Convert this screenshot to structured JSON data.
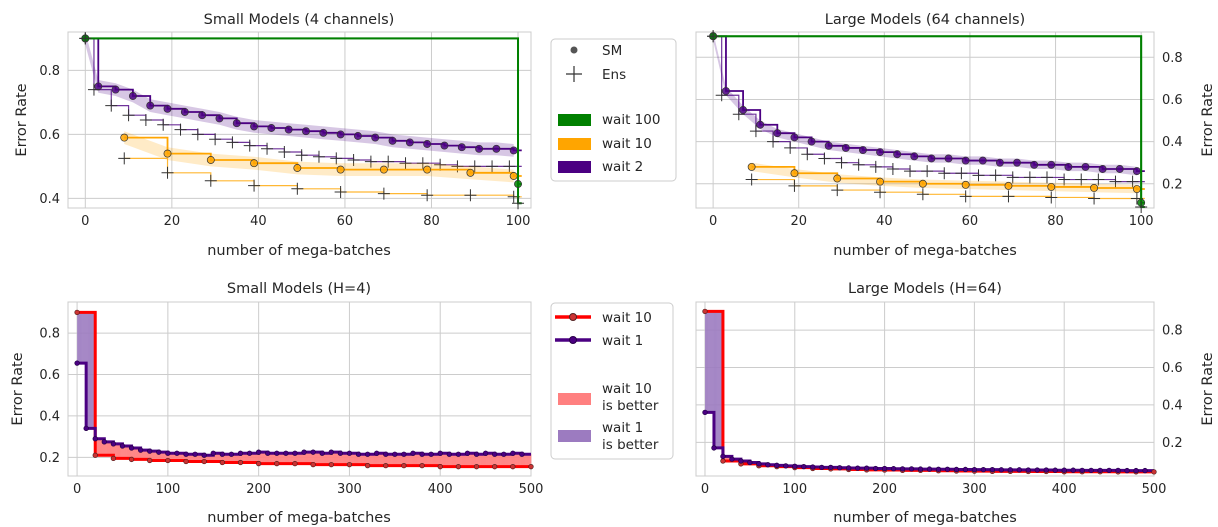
{
  "colors": {
    "wait100": "#008000",
    "wait10": "#ffa500",
    "wait2": "#4b0082",
    "red": "#ff0000",
    "purple_line": "#4b0082",
    "red_fill": "#ff8080",
    "purple_fill": "#9c7bc0",
    "grid": "#cccccc",
    "frame": "#cccccc"
  },
  "top_legend": {
    "sm": "SM",
    "ens": "Ens",
    "wait100": "wait 100",
    "wait10": "wait 10",
    "wait2": "wait 2"
  },
  "bottom_legend": {
    "wait10": "wait 10",
    "wait1": "wait 1",
    "wait10_better_1": "wait 10",
    "wait10_better_2": "is better",
    "wait1_better_1": "wait 1",
    "wait1_better_2": "is better"
  },
  "chart_data": [
    {
      "type": "line",
      "title": "Small Models (4 channels)",
      "xlabel": "number of mega-batches",
      "ylabel": "Error Rate",
      "xlim": [
        -4,
        103
      ],
      "ylim": [
        0.37,
        0.92
      ],
      "xticks": [
        "0",
        "20",
        "40",
        "60",
        "80",
        "100"
      ],
      "yticks": [
        "0.4",
        "0.6",
        "0.8"
      ],
      "ytick_values": [
        0.4,
        0.6,
        0.8
      ],
      "series": [
        {
          "name": "wait 100",
          "color": "wait100",
          "sm_x": [
            0,
            100
          ],
          "sm_y": [
            0.9,
            0.445
          ],
          "ens_x": [
            0,
            100
          ],
          "ens_y": [
            0.9,
            0.385
          ]
        },
        {
          "name": "wait 10",
          "color": "wait10",
          "sm_x": [
            9,
            19,
            29,
            39,
            49,
            59,
            69,
            79,
            89,
            99
          ],
          "sm_y": [
            0.59,
            0.54,
            0.52,
            0.51,
            0.495,
            0.49,
            0.49,
            0.49,
            0.48,
            0.47
          ],
          "ens_x": [
            9,
            19,
            29,
            39,
            49,
            59,
            69,
            79,
            89,
            99
          ],
          "ens_y": [
            0.525,
            0.48,
            0.455,
            0.44,
            0.43,
            0.42,
            0.415,
            0.41,
            0.41,
            0.405
          ]
        },
        {
          "name": "wait 2",
          "color": "wait2",
          "sm_x": [
            0,
            3,
            7,
            11,
            15,
            19,
            23,
            27,
            31,
            35,
            39,
            43,
            47,
            51,
            55,
            59,
            63,
            67,
            71,
            75,
            79,
            83,
            87,
            91,
            95,
            99
          ],
          "sm_y": [
            0.9,
            0.75,
            0.74,
            0.72,
            0.69,
            0.68,
            0.67,
            0.66,
            0.65,
            0.635,
            0.625,
            0.62,
            0.615,
            0.61,
            0.605,
            0.6,
            0.595,
            0.59,
            0.58,
            0.575,
            0.57,
            0.565,
            0.56,
            0.555,
            0.555,
            0.55
          ],
          "ens_x": [
            0,
            2,
            6,
            10,
            14,
            18,
            22,
            26,
            30,
            34,
            38,
            42,
            46,
            50,
            54,
            58,
            62,
            66,
            70,
            74,
            78,
            82,
            86,
            90,
            94,
            98
          ],
          "ens_y": [
            0.9,
            0.74,
            0.69,
            0.66,
            0.645,
            0.63,
            0.615,
            0.6,
            0.585,
            0.575,
            0.565,
            0.555,
            0.545,
            0.535,
            0.53,
            0.525,
            0.52,
            0.515,
            0.515,
            0.51,
            0.51,
            0.505,
            0.5,
            0.5,
            0.5,
            0.5
          ]
        }
      ]
    },
    {
      "type": "line",
      "title": "Large Models (64 channels)",
      "xlabel": "number of mega-batches",
      "ylabel": "Error Rate",
      "xlim": [
        -4,
        103
      ],
      "ylim": [
        0.085,
        0.92
      ],
      "xticks": [
        "0",
        "20",
        "40",
        "60",
        "80",
        "100"
      ],
      "yticks": [
        "0.2",
        "0.4",
        "0.6",
        "0.8"
      ],
      "ytick_values": [
        0.2,
        0.4,
        0.6,
        0.8
      ],
      "series": [
        {
          "name": "wait 100",
          "color": "wait100",
          "sm_x": [
            0,
            100
          ],
          "sm_y": [
            0.9,
            0.11
          ],
          "ens_x": [
            0,
            100
          ],
          "ens_y": [
            0.9,
            0.09
          ]
        },
        {
          "name": "wait 10",
          "color": "wait10",
          "sm_x": [
            9,
            19,
            29,
            39,
            49,
            59,
            69,
            79,
            89,
            99
          ],
          "sm_y": [
            0.28,
            0.25,
            0.225,
            0.21,
            0.2,
            0.195,
            0.19,
            0.185,
            0.18,
            0.175
          ],
          "ens_x": [
            9,
            19,
            29,
            39,
            49,
            59,
            69,
            79,
            89,
            99
          ],
          "ens_y": [
            0.22,
            0.19,
            0.17,
            0.16,
            0.15,
            0.14,
            0.14,
            0.135,
            0.13,
            0.13
          ]
        },
        {
          "name": "wait 2",
          "color": "wait2",
          "sm_x": [
            0,
            3,
            7,
            11,
            15,
            19,
            23,
            27,
            31,
            35,
            39,
            43,
            47,
            51,
            55,
            59,
            63,
            67,
            71,
            75,
            79,
            83,
            87,
            91,
            95,
            99
          ],
          "sm_y": [
            0.9,
            0.64,
            0.55,
            0.48,
            0.44,
            0.42,
            0.4,
            0.38,
            0.37,
            0.36,
            0.35,
            0.34,
            0.33,
            0.32,
            0.32,
            0.31,
            0.31,
            0.3,
            0.3,
            0.29,
            0.29,
            0.28,
            0.28,
            0.27,
            0.27,
            0.26
          ],
          "ens_x": [
            0,
            2,
            6,
            10,
            14,
            18,
            22,
            26,
            30,
            34,
            38,
            42,
            46,
            50,
            54,
            58,
            62,
            66,
            70,
            74,
            78,
            82,
            86,
            90,
            94,
            98
          ],
          "ens_y": [
            0.9,
            0.62,
            0.53,
            0.45,
            0.4,
            0.37,
            0.34,
            0.32,
            0.3,
            0.29,
            0.28,
            0.27,
            0.26,
            0.26,
            0.25,
            0.25,
            0.24,
            0.24,
            0.23,
            0.23,
            0.23,
            0.22,
            0.22,
            0.22,
            0.21,
            0.21
          ]
        }
      ]
    },
    {
      "type": "line",
      "title": "Small Models (H=4)",
      "xlabel": "number of mega-batches",
      "ylabel": "Error Rate",
      "xlim": [
        -10,
        500
      ],
      "ylim": [
        0.11,
        0.95
      ],
      "xticks": [
        "0",
        "100",
        "200",
        "300",
        "400",
        "500"
      ],
      "yticks": [
        "0.2",
        "0.4",
        "0.6",
        "0.8"
      ],
      "ytick_values": [
        0.2,
        0.4,
        0.6,
        0.8
      ],
      "series": [
        {
          "name": "wait 10",
          "color": "red",
          "x": [
            0,
            20,
            40,
            60,
            80,
            100,
            120,
            140,
            160,
            180,
            200,
            220,
            240,
            260,
            280,
            300,
            320,
            340,
            360,
            380,
            400,
            420,
            440,
            460,
            480,
            500
          ],
          "y": [
            0.9,
            0.21,
            0.195,
            0.19,
            0.185,
            0.185,
            0.18,
            0.18,
            0.175,
            0.175,
            0.17,
            0.17,
            0.17,
            0.165,
            0.165,
            0.165,
            0.16,
            0.16,
            0.16,
            0.16,
            0.155,
            0.155,
            0.155,
            0.155,
            0.155,
            0.155
          ]
        },
        {
          "name": "wait 1",
          "color": "purple_line",
          "x": [
            0,
            10,
            20,
            30,
            40,
            50,
            60,
            70,
            80,
            90,
            100,
            110,
            120,
            130,
            140,
            150,
            160,
            170,
            180,
            190,
            200,
            210,
            220,
            230,
            240,
            250,
            260,
            270,
            280,
            290,
            300,
            310,
            320,
            330,
            340,
            350,
            360,
            370,
            380,
            390,
            400,
            410,
            420,
            430,
            440,
            450,
            460,
            470,
            480,
            490
          ],
          "y": [
            0.655,
            0.34,
            0.29,
            0.275,
            0.265,
            0.255,
            0.245,
            0.235,
            0.23,
            0.225,
            0.22,
            0.22,
            0.215,
            0.215,
            0.21,
            0.22,
            0.215,
            0.215,
            0.22,
            0.22,
            0.225,
            0.22,
            0.22,
            0.22,
            0.22,
            0.225,
            0.225,
            0.22,
            0.225,
            0.22,
            0.22,
            0.215,
            0.215,
            0.22,
            0.215,
            0.215,
            0.215,
            0.22,
            0.215,
            0.215,
            0.22,
            0.215,
            0.215,
            0.22,
            0.215,
            0.22,
            0.215,
            0.215,
            0.22,
            0.215
          ]
        }
      ]
    },
    {
      "type": "line",
      "title": "Large Models (H=64)",
      "xlabel": "number of mega-batches",
      "ylabel": "Error Rate",
      "xlim": [
        -10,
        500
      ],
      "ylim": [
        0.02,
        0.95
      ],
      "xticks": [
        "0",
        "100",
        "200",
        "300",
        "400",
        "500"
      ],
      "yticks": [
        "0.2",
        "0.4",
        "0.6",
        "0.8"
      ],
      "ytick_values": [
        0.2,
        0.4,
        0.6,
        0.8
      ],
      "series": [
        {
          "name": "wait 10",
          "color": "red",
          "x": [
            0,
            20,
            40,
            60,
            80,
            100,
            120,
            140,
            160,
            180,
            200,
            220,
            240,
            260,
            280,
            300,
            320,
            340,
            360,
            380,
            400,
            420,
            440,
            460,
            480,
            500
          ],
          "y": [
            0.9,
            0.1,
            0.085,
            0.075,
            0.07,
            0.065,
            0.06,
            0.058,
            0.055,
            0.053,
            0.052,
            0.05,
            0.05,
            0.048,
            0.047,
            0.046,
            0.045,
            0.045,
            0.044,
            0.044,
            0.043,
            0.043,
            0.043,
            0.042,
            0.042,
            0.042
          ]
        },
        {
          "name": "wait 1",
          "color": "purple_line",
          "x": [
            0,
            10,
            20,
            30,
            40,
            50,
            60,
            70,
            80,
            90,
            100,
            110,
            120,
            130,
            140,
            150,
            160,
            170,
            180,
            190,
            200,
            210,
            220,
            230,
            240,
            250,
            260,
            270,
            280,
            290,
            300,
            310,
            320,
            330,
            340,
            350,
            360,
            370,
            380,
            390,
            400,
            410,
            420,
            430,
            440,
            450,
            460,
            470,
            480,
            490
          ],
          "y": [
            0.36,
            0.17,
            0.125,
            0.11,
            0.1,
            0.092,
            0.085,
            0.08,
            0.077,
            0.074,
            0.072,
            0.07,
            0.068,
            0.066,
            0.066,
            0.064,
            0.063,
            0.062,
            0.062,
            0.06,
            0.06,
            0.059,
            0.058,
            0.058,
            0.057,
            0.057,
            0.056,
            0.056,
            0.055,
            0.055,
            0.054,
            0.054,
            0.054,
            0.053,
            0.053,
            0.053,
            0.052,
            0.052,
            0.052,
            0.051,
            0.051,
            0.051,
            0.05,
            0.05,
            0.05,
            0.05,
            0.05,
            0.049,
            0.049,
            0.049
          ]
        }
      ]
    }
  ]
}
